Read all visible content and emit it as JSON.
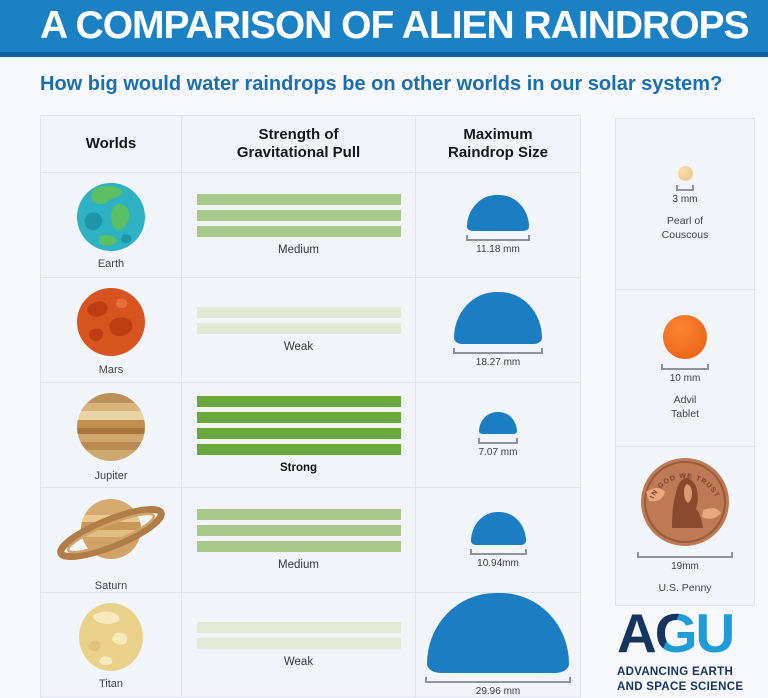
{
  "header": {
    "title": "A COMPARISON OF ALIEN RAINDROPS"
  },
  "subtitle": "How big would water raindrops be on other worlds in our solar system?",
  "table": {
    "columns": [
      {
        "line1": "Worlds",
        "line2": ""
      },
      {
        "line1": "Strength of",
        "line2": "Gravitational Pull"
      },
      {
        "line1": "Maximum",
        "line2": "Raindrop Size"
      }
    ],
    "rows": [
      {
        "world": "Earth",
        "gravity": "Medium",
        "level": "medium",
        "bars": 3,
        "drop_mm": "11.18 mm"
      },
      {
        "world": "Mars",
        "gravity": "Weak",
        "level": "weak",
        "bars": 2,
        "drop_mm": "18.27 mm"
      },
      {
        "world": "Jupiter",
        "gravity": "Strong",
        "level": "strong",
        "bars": 4,
        "drop_mm": "7.07 mm"
      },
      {
        "world": "Saturn",
        "gravity": "Medium",
        "level": "medium",
        "bars": 3,
        "drop_mm": "10.94mm"
      },
      {
        "world": "Titan",
        "gravity": "Weak",
        "level": "weak",
        "bars": 2,
        "drop_mm": "29.96 mm"
      }
    ]
  },
  "reference_objects": [
    {
      "size": "3 mm",
      "name_line1": "Pearl of",
      "name_line2": "Couscous"
    },
    {
      "size": "10 mm",
      "name_line1": "Advil",
      "name_line2": "Tablet"
    },
    {
      "size": "19mm",
      "name_line1": "U.S. Penny",
      "name_line2": "",
      "inscription": "IN GOD WE TRUST"
    }
  ],
  "logo": {
    "text": "AGU",
    "tagline_line1": "ADVANCING EARTH",
    "tagline_line2": "AND SPACE SCIENCE"
  },
  "colors": {
    "header_bg": "#1b81c5",
    "header_underline": "#0e5f9b",
    "subtitle_text": "#1c6fad",
    "raindrop_blue": "#1b7ec2",
    "bar_strong": "#69a63d",
    "bar_medium": "#a9c98b",
    "bar_weak": "#e3e9d5",
    "agu_navy": "#16355e",
    "agu_cyan": "#1e9cd7"
  },
  "chart_data": {
    "type": "table",
    "title": "A COMPARISON OF ALIEN RAINDROPS",
    "subtitle": "How big would water raindrops be on other worlds in our solar system?",
    "columns": [
      "Worlds",
      "Strength of Gravitational Pull",
      "Maximum Raindrop Size"
    ],
    "rows": [
      {
        "world": "Earth",
        "gravity": "Medium",
        "gravity_bars": 3,
        "max_raindrop_mm": 11.18
      },
      {
        "world": "Mars",
        "gravity": "Weak",
        "gravity_bars": 2,
        "max_raindrop_mm": 18.27
      },
      {
        "world": "Jupiter",
        "gravity": "Strong",
        "gravity_bars": 4,
        "max_raindrop_mm": 7.07
      },
      {
        "world": "Saturn",
        "gravity": "Medium",
        "gravity_bars": 3,
        "max_raindrop_mm": 10.94
      },
      {
        "world": "Titan",
        "gravity": "Weak",
        "gravity_bars": 2,
        "max_raindrop_mm": 29.96
      }
    ],
    "reference_scale": [
      {
        "object": "Pearl of Couscous",
        "mm": 3
      },
      {
        "object": "Advil Tablet",
        "mm": 10
      },
      {
        "object": "U.S. Penny",
        "mm": 19
      }
    ]
  }
}
